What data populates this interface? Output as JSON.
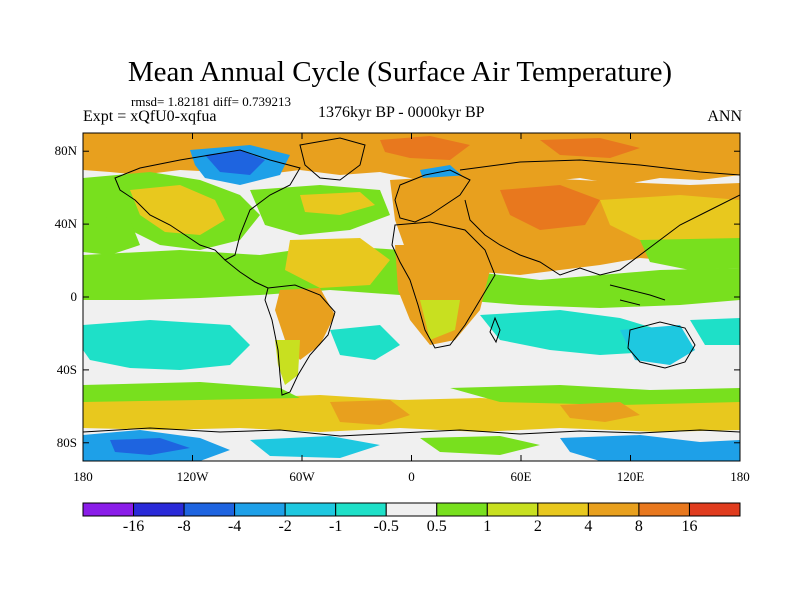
{
  "header": {
    "title": "Mean Annual Cycle (Surface Air Temperature)",
    "stats": "rmsd= 1.82181 diff= 0.739213",
    "expt": "Expt = xQfU0-xqfua",
    "period": "1376kyr BP - 0000kyr BP",
    "season": "ANN"
  },
  "map": {
    "lat_ticks": [
      "80N",
      "40N",
      "0",
      "40S",
      "80S"
    ],
    "lat_values": [
      80,
      40,
      0,
      -40,
      -80
    ],
    "lon_ticks": [
      "180",
      "120W",
      "60W",
      "0",
      "60E",
      "120E",
      "180"
    ],
    "lon_values": [
      -180,
      -120,
      -60,
      0,
      60,
      120,
      180
    ],
    "lat_range": [
      -90,
      90
    ],
    "lon_range": [
      -180,
      180
    ],
    "ocean_fill": "#f0f0f0",
    "coastline_color": "#000000"
  },
  "colorbar": {
    "colors": [
      "#8a1de8",
      "#2a2ad8",
      "#1e64e0",
      "#1ea0e8",
      "#1ec8e0",
      "#1ee0c8",
      "#f0f0f0",
      "#78e01e",
      "#c8e020",
      "#e8c81e",
      "#e8a01e",
      "#e8781e",
      "#e03c1e"
    ],
    "labels": [
      "-16",
      "-8",
      "-4",
      "-2",
      "-1",
      "-0.5",
      "0.5",
      "1",
      "2",
      "4",
      "8",
      "16"
    ]
  }
}
